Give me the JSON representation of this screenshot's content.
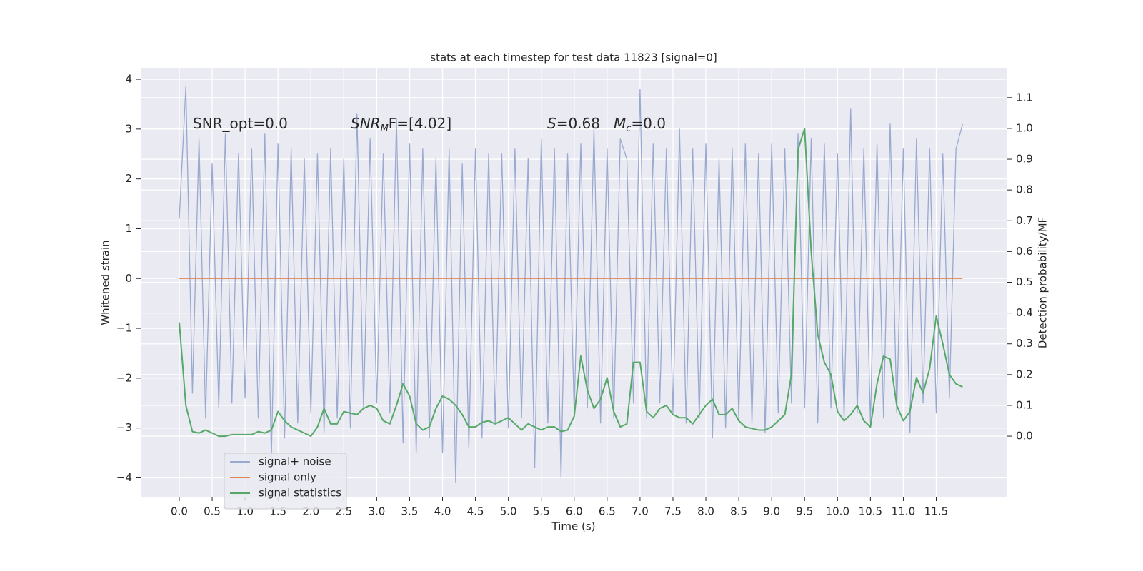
{
  "chart_data": {
    "type": "line",
    "title": "stats at each timestep for test data 11823 [signal=0]",
    "xlabel": "Time (s)",
    "ylabel": "Whitened strain",
    "y2label": "Detection probability/MF",
    "grid": true,
    "legend": "lower left",
    "background": "#eaeaf2",
    "xlim": [
      -0.586,
      12.58
    ],
    "ylim": [
      -4.38,
      4.23
    ],
    "y2lim": [
      -0.197,
      1.197
    ],
    "xticks": [
      {
        "value": 0,
        "label": "0.0"
      },
      {
        "value": 0.5,
        "label": "0.5"
      },
      {
        "value": 1,
        "label": "1.0"
      },
      {
        "value": 1.5,
        "label": "1.5"
      },
      {
        "value": 2,
        "label": "2.0"
      },
      {
        "value": 2.5,
        "label": "2.5"
      },
      {
        "value": 3,
        "label": "3.0"
      },
      {
        "value": 3.5,
        "label": "3.5"
      },
      {
        "value": 4,
        "label": "4.0"
      },
      {
        "value": 4.5,
        "label": "4.5"
      },
      {
        "value": 5,
        "label": "5.0"
      },
      {
        "value": 5.5,
        "label": "5.5"
      },
      {
        "value": 6,
        "label": "6.0"
      },
      {
        "value": 6.5,
        "label": "6.5"
      },
      {
        "value": 7,
        "label": "7.0"
      },
      {
        "value": 7.5,
        "label": "7.5"
      },
      {
        "value": 8,
        "label": "8.0"
      },
      {
        "value": 8.5,
        "label": "8.5"
      },
      {
        "value": 9,
        "label": "9.0"
      },
      {
        "value": 9.5,
        "label": "9.5"
      },
      {
        "value": 10,
        "label": "10.0"
      },
      {
        "value": 10.5,
        "label": "10.5"
      },
      {
        "value": 11,
        "label": "11.0"
      },
      {
        "value": 11.5,
        "label": "11.5"
      }
    ],
    "yticks": [
      {
        "value": -4,
        "label": "−4"
      },
      {
        "value": -3,
        "label": "−3"
      },
      {
        "value": -2,
        "label": "−2"
      },
      {
        "value": -1,
        "label": "−1"
      },
      0,
      1,
      2,
      3,
      4
    ],
    "y2ticks": [
      {
        "value": 0,
        "label": "0.0"
      },
      {
        "value": 0.1,
        "label": "0.1"
      },
      {
        "value": 0.2,
        "label": "0.2"
      },
      {
        "value": 0.3,
        "label": "0.3"
      },
      {
        "value": 0.4,
        "label": "0.4"
      },
      {
        "value": 0.5,
        "label": "0.5"
      },
      {
        "value": 0.6,
        "label": "0.6"
      },
      {
        "value": 0.7,
        "label": "0.7"
      },
      {
        "value": 0.8,
        "label": "0.8"
      },
      {
        "value": 0.9,
        "label": "0.9"
      },
      {
        "value": 1,
        "label": "1.0"
      },
      {
        "value": 1.1,
        "label": "1.1"
      }
    ],
    "annotations": [
      {
        "text": "SNR_opt=0.0"
      },
      {
        "base": "SNR",
        "sub": "M",
        "rest": "F=[4.02]"
      },
      {
        "base": "S",
        "rest": "=0.68"
      },
      {
        "base": "M",
        "sub": "c",
        "rest": "=0.0"
      }
    ],
    "x": [
      0,
      0.1,
      0.2,
      0.3,
      0.4,
      0.5,
      0.6,
      0.7,
      0.8,
      0.9,
      1,
      1.1,
      1.2,
      1.3,
      1.4,
      1.5,
      1.6,
      1.7,
      1.8,
      1.9,
      2,
      2.1,
      2.2,
      2.3,
      2.4,
      2.5,
      2.6,
      2.7,
      2.8,
      2.9,
      3,
      3.1,
      3.2,
      3.3,
      3.4,
      3.5,
      3.6,
      3.7,
      3.8,
      3.9,
      4,
      4.1,
      4.2,
      4.3,
      4.4,
      4.5,
      4.6,
      4.7,
      4.8,
      4.9,
      5,
      5.1,
      5.2,
      5.3,
      5.4,
      5.5,
      5.6,
      5.7,
      5.8,
      5.9,
      6,
      6.1,
      6.2,
      6.3,
      6.4,
      6.5,
      6.6,
      6.7,
      6.8,
      6.9,
      7,
      7.1,
      7.2,
      7.3,
      7.4,
      7.5,
      7.6,
      7.7,
      7.8,
      7.9,
      8,
      8.1,
      8.2,
      8.3,
      8.4,
      8.5,
      8.6,
      8.7,
      8.8,
      8.9,
      9,
      9.1,
      9.2,
      9.3,
      9.4,
      9.5,
      9.6,
      9.7,
      9.8,
      9.9,
      10,
      10.1,
      10.2,
      10.3,
      10.4,
      10.5,
      10.6,
      10.7,
      10.8,
      10.9,
      11,
      11.1,
      11.2,
      11.3,
      11.4,
      11.5,
      11.6,
      11.7,
      11.8,
      11.9
    ],
    "series": [
      {
        "name": "signal+ noise",
        "color": "#99a9cf",
        "values": [
          1.2,
          3.85,
          -2.3,
          2.8,
          -2.8,
          2.3,
          -2.6,
          2.9,
          -2.5,
          2.5,
          -2.4,
          2.6,
          -2.8,
          2.9,
          -3.6,
          2.7,
          -3.2,
          2.6,
          -2.9,
          2.4,
          -2.7,
          2.5,
          -3.1,
          2.6,
          -2.8,
          2.4,
          -3.0,
          3.3,
          -2.6,
          2.8,
          -2.5,
          2.5,
          -2.7,
          3.2,
          -3.3,
          2.7,
          -3.5,
          2.6,
          -3.2,
          2.4,
          -3.5,
          2.6,
          -4.1,
          2.3,
          -3.4,
          2.6,
          -3.2,
          2.5,
          -2.9,
          2.5,
          -3.0,
          2.6,
          -2.8,
          2.4,
          -3.8,
          2.8,
          -2.9,
          2.6,
          -4.0,
          2.5,
          -2.7,
          2.7,
          -2.6,
          3.0,
          -2.9,
          2.6,
          -2.8,
          2.8,
          2.4,
          -2.5,
          3.8,
          -2.8,
          2.7,
          -2.5,
          2.6,
          -2.7,
          3.0,
          -2.9,
          2.6,
          -2.8,
          2.7,
          -3.2,
          2.4,
          -3.0,
          2.6,
          -2.8,
          2.7,
          -2.9,
          2.5,
          -3.1,
          2.7,
          -2.7,
          2.6,
          -2.5,
          2.9,
          -2.6,
          2.8,
          -2.9,
          2.7,
          -2.6,
          2.5,
          -2.8,
          3.4,
          -2.7,
          2.6,
          -2.9,
          2.7,
          -2.8,
          3.1,
          -2.7,
          2.6,
          -3.1,
          2.8,
          -2.5,
          2.6,
          -2.7,
          2.5,
          -2.4,
          2.6,
          3.1
        ]
      },
      {
        "name": "signal only",
        "color": "#dd8452",
        "x": [
          0,
          11.9
        ],
        "values": [
          0,
          0
        ]
      },
      {
        "name": "signal statistics",
        "color": "#55a868",
        "axis": "y2",
        "values": [
          0.37,
          0.1,
          0.015,
          0.01,
          0.02,
          0.01,
          0.0,
          0.0,
          0.005,
          0.005,
          0.005,
          0.005,
          0.015,
          0.01,
          0.02,
          0.08,
          0.05,
          0.03,
          0.02,
          0.01,
          0.0,
          0.03,
          0.09,
          0.04,
          0.04,
          0.08,
          0.075,
          0.07,
          0.09,
          0.1,
          0.09,
          0.05,
          0.04,
          0.1,
          0.17,
          0.13,
          0.04,
          0.02,
          0.03,
          0.09,
          0.13,
          0.12,
          0.1,
          0.07,
          0.03,
          0.03,
          0.045,
          0.05,
          0.04,
          0.05,
          0.06,
          0.04,
          0.02,
          0.04,
          0.03,
          0.02,
          0.03,
          0.03,
          0.015,
          0.02,
          0.065,
          0.26,
          0.15,
          0.09,
          0.12,
          0.19,
          0.08,
          0.03,
          0.04,
          0.24,
          0.24,
          0.08,
          0.06,
          0.09,
          0.1,
          0.07,
          0.06,
          0.06,
          0.04,
          0.07,
          0.1,
          0.12,
          0.07,
          0.07,
          0.09,
          0.05,
          0.03,
          0.025,
          0.02,
          0.02,
          0.03,
          0.05,
          0.07,
          0.2,
          0.93,
          1.0,
          0.6,
          0.33,
          0.24,
          0.2,
          0.08,
          0.05,
          0.07,
          0.1,
          0.05,
          0.03,
          0.17,
          0.26,
          0.25,
          0.1,
          0.05,
          0.08,
          0.19,
          0.14,
          0.22,
          0.39,
          0.3,
          0.2,
          0.17,
          0.16
        ]
      }
    ]
  }
}
